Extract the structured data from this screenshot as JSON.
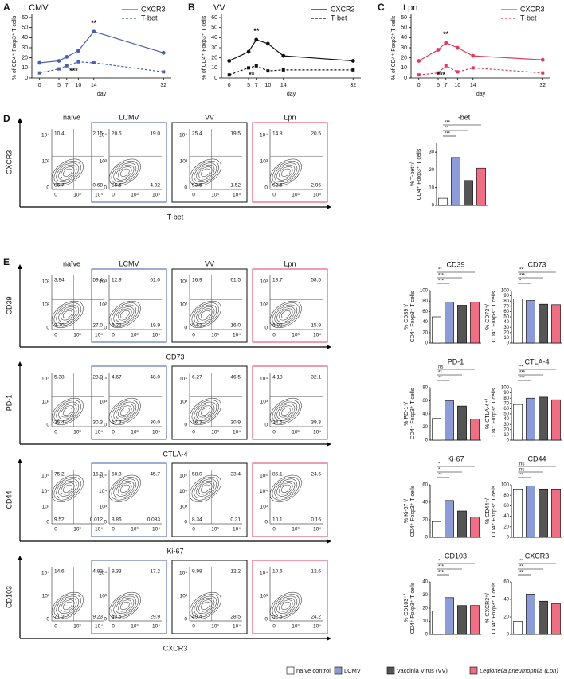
{
  "panel_labels": [
    "A",
    "B",
    "C",
    "D",
    "E"
  ],
  "chart_data": [
    {
      "type": "line",
      "title": "LCMV",
      "ylabel": "% of CD4⁺ Foxp3⁺ T cells",
      "xlabel": "day",
      "x": [
        0,
        5,
        7,
        10,
        14,
        32
      ],
      "xlim": [
        -2,
        34
      ],
      "xticks": [
        0,
        5,
        7,
        10,
        14,
        32
      ],
      "ylim": [
        0,
        60
      ],
      "yticks": [
        0,
        10,
        20,
        30,
        40,
        50,
        60
      ],
      "series": [
        {
          "name": "CXCR3",
          "color": "#4a5fae",
          "dash": false,
          "marker": "circle",
          "values": [
            15,
            17,
            21,
            27,
            46,
            25
          ]
        },
        {
          "name": "T-bet",
          "color": "#4a5fae",
          "dash": true,
          "marker": "square",
          "values": [
            5,
            9,
            12,
            16,
            15,
            6
          ]
        }
      ],
      "annotations": [
        "**",
        "***"
      ]
    },
    {
      "type": "line",
      "title": "VV",
      "ylabel": "% of CD4⁺ Foxp3⁺ T cells",
      "xlabel": "day",
      "x": [
        0,
        5,
        7,
        10,
        14,
        32
      ],
      "xlim": [
        -2,
        34
      ],
      "xticks": [
        0,
        5,
        7,
        10,
        14,
        32
      ],
      "ylim": [
        0,
        60
      ],
      "yticks": [
        0,
        10,
        20,
        30,
        40,
        50,
        60
      ],
      "series": [
        {
          "name": "CXCR3",
          "color": "#111111",
          "dash": false,
          "marker": "circle",
          "values": [
            17,
            26,
            38,
            34,
            22,
            17
          ]
        },
        {
          "name": "T-bet",
          "color": "#111111",
          "dash": true,
          "marker": "square",
          "values": [
            3,
            10,
            12,
            7,
            8,
            8
          ]
        }
      ],
      "annotations": [
        "**",
        "**"
      ]
    },
    {
      "type": "line",
      "title": "Lpn",
      "ylabel": "% of CD4⁺ Foxp3⁺ T cells",
      "xlabel": "day",
      "x": [
        0,
        5,
        7,
        10,
        14,
        32
      ],
      "xlim": [
        -2,
        34
      ],
      "xticks": [
        0,
        5,
        7,
        10,
        14,
        32
      ],
      "ylim": [
        0,
        60
      ],
      "yticks": [
        0,
        10,
        20,
        30,
        40,
        50,
        60
      ],
      "series": [
        {
          "name": "CXCR3",
          "color": "#e03a5c",
          "dash": false,
          "marker": "circle",
          "values": [
            17,
            28,
            35,
            30,
            22,
            18
          ]
        },
        {
          "name": "T-bet",
          "color": "#e03a5c",
          "dash": true,
          "marker": "square",
          "values": [
            3,
            5,
            12,
            6,
            10,
            5
          ]
        }
      ],
      "annotations": [
        "**",
        "***"
      ]
    },
    {
      "type": "bar",
      "title": "T-bet",
      "ylabel": [
        "% T-bet⁺/",
        "CD4⁺ Foxp3⁺ T cells"
      ],
      "categories": [
        null,
        null,
        null,
        null
      ],
      "values": [
        4,
        27,
        14,
        21
      ],
      "ylim": [
        0,
        35
      ],
      "yticks": [
        0,
        10,
        20,
        30
      ],
      "significance": [
        "***",
        "**",
        "***"
      ]
    },
    {
      "type": "bar",
      "title": "CD39",
      "ylabel": [
        "% CD39⁺/",
        "CD4⁺ Foxp3⁺ T cells"
      ],
      "categories": [
        null,
        null,
        null,
        null
      ],
      "values": [
        50,
        78,
        72,
        78
      ],
      "ylim": [
        0,
        100
      ],
      "yticks": [
        0,
        20,
        40,
        60,
        80,
        100
      ],
      "significance": [
        "**",
        "***",
        "***"
      ]
    },
    {
      "type": "bar",
      "title": "CD73",
      "ylabel": [
        "% CD73⁺/",
        "CD4⁺ Foxp3⁺ T cells"
      ],
      "categories": [
        null,
        null,
        null,
        null
      ],
      "values": [
        84,
        81,
        74,
        73
      ],
      "ylim": [
        0,
        100
      ],
      "yticks": [
        0,
        10,
        20,
        30,
        40,
        50,
        60,
        70,
        80,
        90,
        100
      ],
      "significance": [
        "**",
        "***",
        "*"
      ]
    },
    {
      "type": "bar",
      "title": "PD-1",
      "ylabel": [
        "% PD-1⁺/",
        "CD4⁺ Foxp3⁺ T cells"
      ],
      "categories": [
        null,
        null,
        null,
        null
      ],
      "values": [
        33,
        60,
        52,
        32
      ],
      "ylim": [
        0,
        80
      ],
      "yticks": [
        0,
        20,
        40,
        60,
        80
      ],
      "significance": [
        "ns",
        "**",
        "**"
      ]
    },
    {
      "type": "bar",
      "title": "CTLA-4",
      "ylabel": [
        "% CTLA-4⁺/",
        "CD4⁺ Foxp3⁺ T cells"
      ],
      "categories": [
        null,
        null,
        null,
        null
      ],
      "values": [
        68,
        80,
        82,
        77
      ],
      "ylim": [
        0,
        100
      ],
      "yticks": [
        0,
        10,
        20,
        30,
        40,
        50,
        60,
        70,
        80,
        90,
        100
      ],
      "significance": [
        "**",
        "***",
        "***"
      ]
    },
    {
      "type": "bar",
      "title": "Ki-67",
      "ylabel": [
        "% Ki-67⁺/",
        "CD4⁺ Foxp3⁺ T cells"
      ],
      "categories": [
        null,
        null,
        null,
        null
      ],
      "values": [
        18,
        42,
        30,
        23
      ],
      "ylim": [
        0,
        60
      ],
      "yticks": [
        0,
        20,
        40,
        60
      ],
      "significance": [
        "*",
        "*",
        "**"
      ]
    },
    {
      "type": "bar",
      "title": "CD44",
      "ylabel": [
        "% CD44⁺/",
        "CD4⁺ Foxp3⁺ T cells"
      ],
      "categories": [
        null,
        null,
        null,
        null
      ],
      "values": [
        92,
        98,
        92,
        92
      ],
      "ylim": [
        0,
        100
      ],
      "yticks": [
        0,
        20,
        40,
        60,
        80,
        100
      ],
      "significance": [
        "ns",
        "ns",
        "**"
      ]
    },
    {
      "type": "bar",
      "title": "CD103",
      "ylabel": [
        "% CD103⁺/",
        "CD4⁺ Foxp3⁺ T cells"
      ],
      "categories": [
        null,
        null,
        null,
        null
      ],
      "values": [
        18,
        28,
        22,
        22
      ],
      "ylim": [
        0,
        40
      ],
      "yticks": [
        0,
        10,
        20,
        30,
        40
      ],
      "significance": [
        "*",
        "***",
        "***"
      ]
    },
    {
      "type": "bar",
      "title": "CXCR3",
      "ylabel": [
        "% CXCR3⁺/",
        "CD4⁺ Foxp3⁺ T cells"
      ],
      "categories": [
        null,
        null,
        null,
        null
      ],
      "values": [
        15,
        46,
        38,
        35
      ],
      "ylim": [
        0,
        60
      ],
      "yticks": [
        0,
        20,
        40,
        60
      ],
      "significance": [
        "**",
        "**",
        "**"
      ]
    }
  ],
  "flow_panels": {
    "columns": [
      "naïve",
      "LCMV",
      "VV",
      "Lpn"
    ],
    "frame_colors": [
      null,
      "#3f58a8",
      "#111111",
      "#d93e62"
    ],
    "rows": [
      {
        "y_label": "CXCR3",
        "x_label": "T-bet",
        "y_ticks": [
          "10⁴",
          "10³",
          "0"
        ],
        "x_ticks": [
          "0",
          "10³",
          "10⁴"
        ],
        "quadrants": [
          [
            "10.4",
            "2.15",
            "86.7",
            "0.68"
          ],
          [
            "20.5",
            "19.0",
            "55.5",
            "4.92"
          ],
          [
            "25.4",
            "19.5",
            "53.5",
            "1.52"
          ],
          [
            "14.8",
            "20.5",
            "62.6",
            "2.06"
          ]
        ]
      },
      {
        "y_label": "CD39",
        "x_label": "CD73",
        "y_ticks": [
          "10³",
          "10²",
          "0"
        ],
        "x_ticks": [
          "0",
          "10³",
          "10⁴"
        ],
        "quadrants": [
          [
            "3.94",
            "59.4",
            "9.70",
            "27.0"
          ],
          [
            "12.9",
            "61.0",
            "6.22",
            "19.9"
          ],
          [
            "16.9",
            "61.5",
            "5.62",
            "16.0"
          ],
          [
            "18.7",
            "58.5",
            "6.92",
            "15.9"
          ]
        ]
      },
      {
        "y_label": "PD-1",
        "x_label": "CTLA-4",
        "y_ticks": [
          "10⁴",
          "10³",
          "0"
        ],
        "x_ticks": [
          "0",
          "10³",
          "10⁴"
        ],
        "quadrants": [
          [
            "5.38",
            "28.9",
            "35.4",
            "30.3"
          ],
          [
            "4.67",
            "48.0",
            "17.3",
            "30.0"
          ],
          [
            "6.27",
            "46.5",
            "16.3",
            "30.9"
          ],
          [
            "4.18",
            "32.1",
            "24.5",
            "39.3"
          ]
        ]
      },
      {
        "y_label": "CD44",
        "x_label": "Ki-67",
        "y_ticks": [
          "10⁵",
          "10⁴",
          "10³",
          "0"
        ],
        "x_ticks": [
          "0",
          "10³",
          "10⁴"
        ],
        "quadrants": [
          [
            "75.2",
            "15.3",
            "9.52",
            "0.012"
          ],
          [
            "50.3",
            "45.7",
            "3.86",
            "0.083"
          ],
          [
            "58.0",
            "33.4",
            "8.34",
            "0.21"
          ],
          [
            "85.1",
            "24.6",
            "10.1",
            "0.16"
          ]
        ]
      },
      {
        "y_label": "CD103",
        "x_label": "CXCR3",
        "y_ticks": [
          "10⁴",
          "10³",
          "0"
        ],
        "x_ticks": [
          "0",
          "10³",
          "10⁴"
        ],
        "quadrants": [
          [
            "14.6",
            "4.93",
            "71.2",
            "9.23"
          ],
          [
            "9.33",
            "17.2",
            "43.5",
            "29.9"
          ],
          [
            "9.98",
            "12.2",
            "49.4",
            "28.5"
          ],
          [
            "10.6",
            "12.6",
            "52.6",
            "24.2"
          ]
        ]
      }
    ]
  },
  "legend": [
    {
      "label": "naïve control",
      "color": "#ffffff"
    },
    {
      "label": "LCMV",
      "color": "#8d9bd6"
    },
    {
      "label": "Vaccinia Virus (VV)",
      "color": "#555555"
    },
    {
      "label": "Legionella pneumophila (Lpn)",
      "color": "#ee6e84"
    }
  ]
}
